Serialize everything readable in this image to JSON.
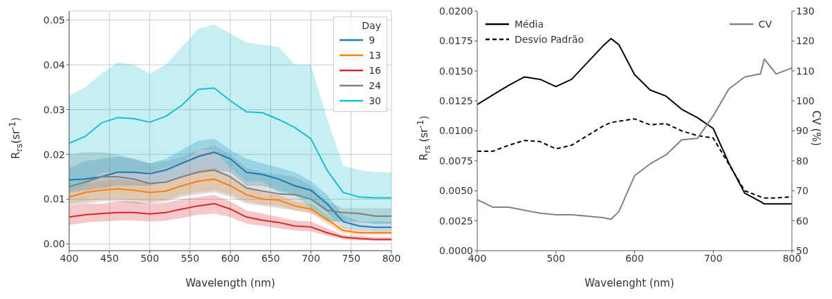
{
  "chart_data": [
    {
      "type": "line",
      "xlabel": "Wavelength (nm)",
      "ylabel": "R$_{rs}$(sr$^{-1}$)",
      "legend_title": "Day",
      "legend": "top right",
      "grid": true,
      "marker": "none",
      "x": [
        400,
        420,
        440,
        460,
        480,
        500,
        520,
        540,
        560,
        580,
        600,
        620,
        640,
        660,
        680,
        700,
        720,
        740,
        760,
        780,
        800
      ],
      "xlim": [
        400,
        800
      ],
      "xticks": [
        400,
        450,
        500,
        550,
        600,
        650,
        700,
        750,
        800
      ],
      "ylim": [
        -0.0015,
        0.052
      ],
      "yticks": [
        {
          "value": 0,
          "label": "0.00"
        },
        {
          "value": 0.01,
          "label": "0.01"
        },
        {
          "value": 0.02,
          "label": "0.02"
        },
        {
          "value": 0.03,
          "label": "0.03"
        },
        {
          "value": 0.04,
          "label": "0.04"
        },
        {
          "value": 0.05,
          "label": "0.05"
        }
      ],
      "series": [
        {
          "name": "9",
          "color": "#1f77b4",
          "values": [
            0.0143,
            0.0145,
            0.015,
            0.016,
            0.016,
            0.0157,
            0.0165,
            0.018,
            0.0195,
            0.0205,
            0.019,
            0.016,
            0.0155,
            0.0145,
            0.013,
            0.012,
            0.009,
            0.005,
            0.004,
            0.0037,
            0.0037
          ],
          "lower": [
            0.0115,
            0.012,
            0.0125,
            0.013,
            0.013,
            0.013,
            0.014,
            0.015,
            0.016,
            0.0165,
            0.016,
            0.013,
            0.013,
            0.012,
            0.011,
            0.01,
            0.007,
            0.0035,
            0.003,
            0.0028,
            0.0028
          ],
          "upper": [
            0.017,
            0.0185,
            0.019,
            0.0195,
            0.019,
            0.018,
            0.019,
            0.021,
            0.023,
            0.0235,
            0.021,
            0.019,
            0.018,
            0.017,
            0.016,
            0.014,
            0.011,
            0.0065,
            0.005,
            0.005,
            0.005
          ]
        },
        {
          "name": "13",
          "color": "#ff7f0e",
          "values": [
            0.0105,
            0.0115,
            0.012,
            0.0123,
            0.012,
            0.0115,
            0.0118,
            0.013,
            0.014,
            0.0145,
            0.013,
            0.011,
            0.01,
            0.0098,
            0.0085,
            0.0078,
            0.0055,
            0.003,
            0.0025,
            0.0025,
            0.0025
          ],
          "lower": [
            0.009,
            0.0095,
            0.01,
            0.01,
            0.0098,
            0.0095,
            0.0098,
            0.011,
            0.0115,
            0.012,
            0.011,
            0.0095,
            0.0088,
            0.0085,
            0.0075,
            0.0068,
            0.0045,
            0.0023,
            0.002,
            0.002,
            0.002
          ],
          "upper": [
            0.012,
            0.0135,
            0.014,
            0.0145,
            0.014,
            0.0135,
            0.014,
            0.015,
            0.0165,
            0.017,
            0.015,
            0.0125,
            0.0115,
            0.011,
            0.0095,
            0.009,
            0.0065,
            0.0038,
            0.003,
            0.003,
            0.003
          ]
        },
        {
          "name": "16",
          "color": "#d62728",
          "values": [
            0.006,
            0.0065,
            0.0068,
            0.007,
            0.007,
            0.0067,
            0.007,
            0.0078,
            0.0085,
            0.009,
            0.0078,
            0.006,
            0.0053,
            0.0048,
            0.004,
            0.0038,
            0.0025,
            0.0015,
            0.0012,
            0.001,
            0.001
          ],
          "lower": [
            0.0042,
            0.0048,
            0.005,
            0.0052,
            0.0052,
            0.005,
            0.0052,
            0.0058,
            0.0065,
            0.0068,
            0.006,
            0.0045,
            0.004,
            0.0035,
            0.003,
            0.0028,
            0.0018,
            0.001,
            0.0008,
            0.0007,
            0.0007
          ],
          "upper": [
            0.0085,
            0.009,
            0.009,
            0.0095,
            0.0095,
            0.009,
            0.0092,
            0.01,
            0.0105,
            0.011,
            0.0095,
            0.0075,
            0.0068,
            0.006,
            0.0052,
            0.005,
            0.0035,
            0.002,
            0.0018,
            0.0015,
            0.0015
          ]
        },
        {
          "name": "24",
          "color": "#7f7f7f",
          "values": [
            0.0128,
            0.0138,
            0.015,
            0.015,
            0.0145,
            0.0135,
            0.0138,
            0.015,
            0.016,
            0.0165,
            0.015,
            0.0125,
            0.0118,
            0.0112,
            0.011,
            0.01,
            0.0075,
            0.007,
            0.0068,
            0.0062,
            0.0062
          ],
          "lower": [
            0.0085,
            0.009,
            0.0095,
            0.0095,
            0.009,
            0.009,
            0.0095,
            0.0105,
            0.011,
            0.0115,
            0.0105,
            0.009,
            0.0085,
            0.008,
            0.0075,
            0.007,
            0.005,
            0.005,
            0.0048,
            0.0045,
            0.0045
          ],
          "upper": [
            0.02,
            0.0205,
            0.0205,
            0.02,
            0.019,
            0.018,
            0.0185,
            0.0195,
            0.021,
            0.022,
            0.02,
            0.017,
            0.016,
            0.0155,
            0.015,
            0.013,
            0.0095,
            0.008,
            0.008,
            0.008,
            0.008
          ]
        },
        {
          "name": "30",
          "color": "#17becf",
          "values": [
            0.0225,
            0.024,
            0.027,
            0.0282,
            0.028,
            0.0272,
            0.0285,
            0.031,
            0.0345,
            0.0348,
            0.032,
            0.0295,
            0.0293,
            0.0278,
            0.026,
            0.0235,
            0.0165,
            0.0115,
            0.0105,
            0.0103,
            0.0103
          ],
          "lower": [
            0.012,
            0.013,
            0.016,
            0.016,
            0.016,
            0.016,
            0.017,
            0.018,
            0.021,
            0.021,
            0.017,
            0.014,
            0.014,
            0.0115,
            0.011,
            0.008,
            0.005,
            0.005,
            0.005,
            0.0045,
            0.0045
          ],
          "upper": [
            0.033,
            0.035,
            0.038,
            0.0405,
            0.04,
            0.038,
            0.04,
            0.044,
            0.048,
            0.049,
            0.047,
            0.045,
            0.0445,
            0.044,
            0.04,
            0.04,
            0.028,
            0.0175,
            0.0165,
            0.016,
            0.016
          ]
        }
      ]
    },
    {
      "type": "line",
      "xlabel": "Wavelenght (nm)",
      "ylabel": "R$_{rs}$ (sr$^{-1}$)",
      "y2label": "CV (%)",
      "legend": "top",
      "grid": false,
      "marker": "none",
      "x": [
        400,
        420,
        440,
        460,
        480,
        500,
        520,
        540,
        560,
        570,
        580,
        600,
        620,
        640,
        660,
        680,
        700,
        720,
        740,
        760,
        765,
        780,
        800
      ],
      "xlim": [
        400,
        800
      ],
      "xticks": [
        400,
        500,
        600,
        700,
        800
      ],
      "ylim": [
        0,
        0.02
      ],
      "yticks": [
        {
          "value": 0,
          "label": "0.0000"
        },
        {
          "value": 0.0025,
          "label": "0.0025"
        },
        {
          "value": 0.005,
          "label": "0.0050"
        },
        {
          "value": 0.0075,
          "label": "0.0075"
        },
        {
          "value": 0.01,
          "label": "0.0100"
        },
        {
          "value": 0.0125,
          "label": "0.0125"
        },
        {
          "value": 0.015,
          "label": "0.0150"
        },
        {
          "value": 0.0175,
          "label": "0.0175"
        },
        {
          "value": 0.02,
          "label": "0.0200"
        }
      ],
      "y2lim": [
        50,
        130
      ],
      "y2ticks": [
        50,
        60,
        70,
        80,
        90,
        100,
        110,
        120,
        130
      ],
      "series": [
        {
          "name": "Média",
          "color": "#000000",
          "line_style": "solid",
          "values": [
            0.0122,
            0.013,
            0.0138,
            0.0145,
            0.0143,
            0.0137,
            0.0143,
            0.0157,
            0.0171,
            0.0177,
            0.0172,
            0.0147,
            0.0134,
            0.0129,
            0.0118,
            0.0111,
            0.0102,
            0.0073,
            0.0048,
            0.0041,
            0.0039,
            0.0039,
            0.0039
          ]
        },
        {
          "name": "Desvio Padrão",
          "color": "#000000",
          "line_style": "dashed",
          "values": [
            0.0083,
            0.0083,
            0.0088,
            0.0092,
            0.0091,
            0.0085,
            0.0088,
            0.0096,
            0.0104,
            0.0107,
            0.0108,
            0.011,
            0.0105,
            0.0106,
            0.01,
            0.0096,
            0.0094,
            0.0072,
            0.005,
            0.0045,
            0.0044,
            0.0044,
            0.0045
          ]
        },
        {
          "name": "CV",
          "color": "#808080",
          "line_style": "solid",
          "axis": "y2",
          "values": [
            67,
            64.5,
            64.5,
            63.5,
            62.5,
            62,
            62,
            61.5,
            61,
            60.5,
            63,
            75,
            79,
            82,
            87,
            87.5,
            95,
            104,
            108,
            109,
            114,
            109,
            111
          ]
        }
      ]
    }
  ]
}
